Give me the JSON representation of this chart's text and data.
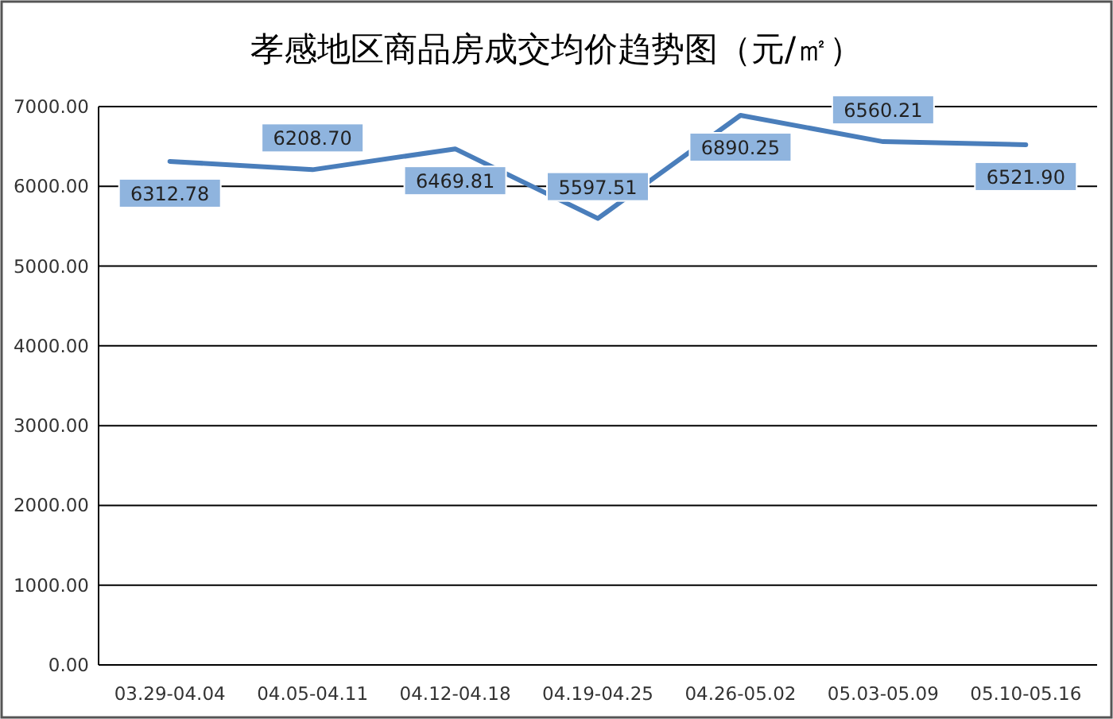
{
  "chart_data": {
    "type": "line",
    "title": "孝感地区商品房成交均价趋势图（元/㎡）",
    "categories": [
      "03.29-04.04",
      "04.05-04.11",
      "04.12-04.18",
      "04.19-04.25",
      "04.26-05.02",
      "05.03-05.09",
      "05.10-05.16"
    ],
    "series": [
      {
        "color": "#4a7ebb",
        "values": [
          6312.78,
          6208.7,
          6469.81,
          5597.51,
          6890.25,
          6560.21,
          6521.9
        ],
        "value_labels": [
          "6312.78",
          "6208.70",
          "6469.81",
          "5597.51",
          "6890.25",
          "6560.21",
          "6521.90"
        ]
      }
    ],
    "ylim": [
      0,
      7000
    ],
    "yticks": [
      {
        "value": 0,
        "label": "0.00"
      },
      {
        "value": 1000,
        "label": "1000.00"
      },
      {
        "value": 2000,
        "label": "2000.00"
      },
      {
        "value": 3000,
        "label": "3000.00"
      },
      {
        "value": 4000,
        "label": "4000.00"
      },
      {
        "value": 5000,
        "label": "5000.00"
      },
      {
        "value": 6000,
        "label": "6000.00"
      },
      {
        "value": 7000,
        "label": "7000.00"
      }
    ],
    "grid": "y"
  }
}
